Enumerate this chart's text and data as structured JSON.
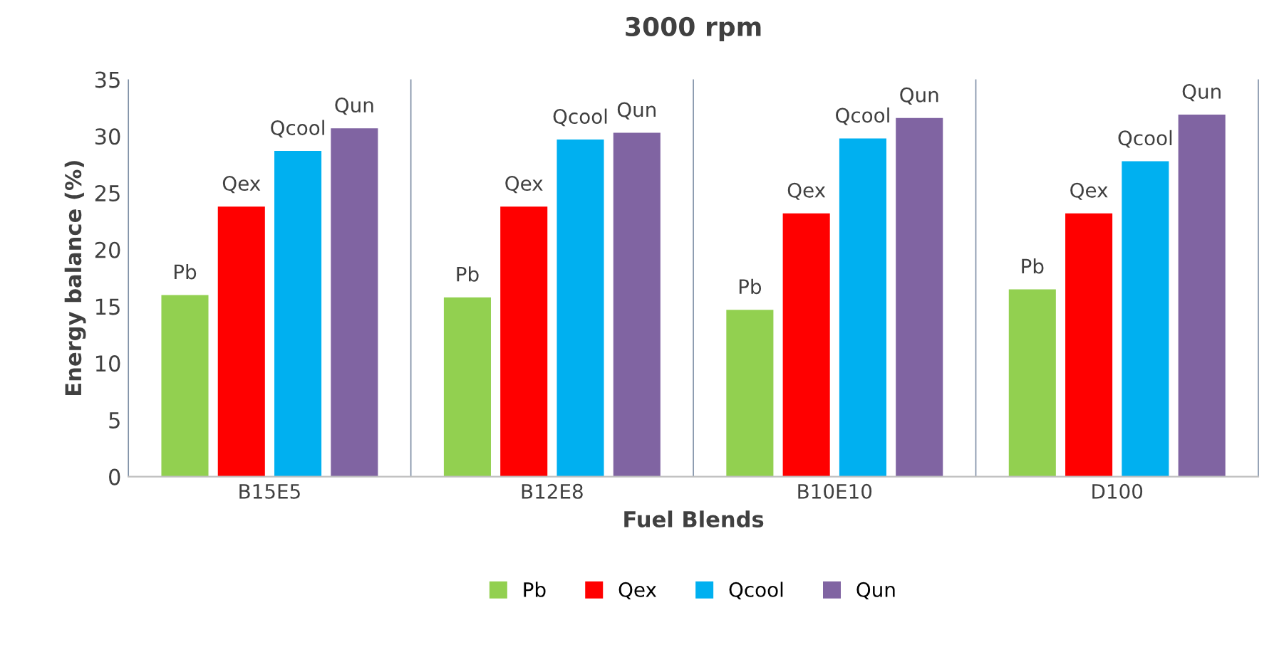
{
  "chart_data": {
    "type": "bar",
    "title": "3000 rpm",
    "xlabel": "Fuel Blends",
    "ylabel": "Energy balance (%)",
    "categories": [
      "B15E5",
      "B12E8",
      "B10E10",
      "D100"
    ],
    "series": [
      {
        "name": "Pb",
        "color": "#92d050",
        "values": [
          16.0,
          15.8,
          14.7,
          16.5
        ]
      },
      {
        "name": "Qex",
        "color": "#ff0000",
        "values": [
          23.8,
          23.8,
          23.2,
          23.2
        ]
      },
      {
        "name": "Qcool",
        "color": "#00b0f0",
        "values": [
          28.7,
          29.7,
          29.8,
          27.8
        ]
      },
      {
        "name": "Qun",
        "color": "#8064a2",
        "values": [
          30.7,
          30.3,
          31.6,
          31.9
        ]
      }
    ],
    "ylim": [
      0,
      35
    ],
    "yticks": [
      0,
      5,
      10,
      15,
      20,
      25,
      30,
      35
    ],
    "grid": false,
    "legend": "bottom"
  }
}
